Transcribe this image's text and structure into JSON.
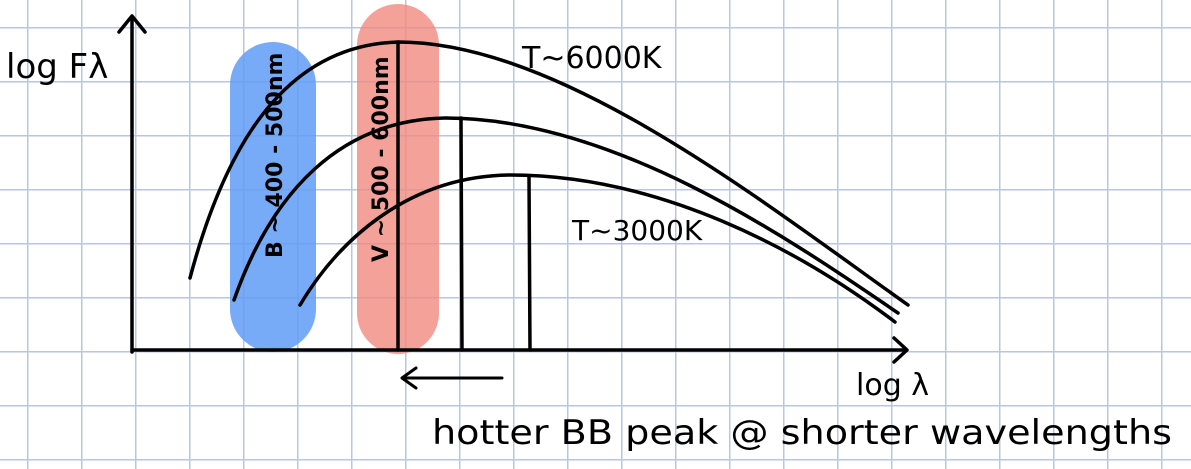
{
  "axes": {
    "y_label": "log Fλ",
    "x_label": "log λ"
  },
  "bands": [
    {
      "label": "B ~ 400 - 500nm",
      "color": "#5f9cf7"
    },
    {
      "label": "V ~ 500 - 600nm",
      "color": "#f08a80"
    }
  ],
  "curves": [
    {
      "label": "T~6000K"
    },
    {
      "label": "T~3000K"
    }
  ],
  "annotation": {
    "text": "hotter BB peak @ shorter wavelengths"
  },
  "colors": {
    "ink": "#000000",
    "grid": "#b9c6dc",
    "b_text": "#2f6fe0",
    "v_text": "#e23a2c"
  }
}
